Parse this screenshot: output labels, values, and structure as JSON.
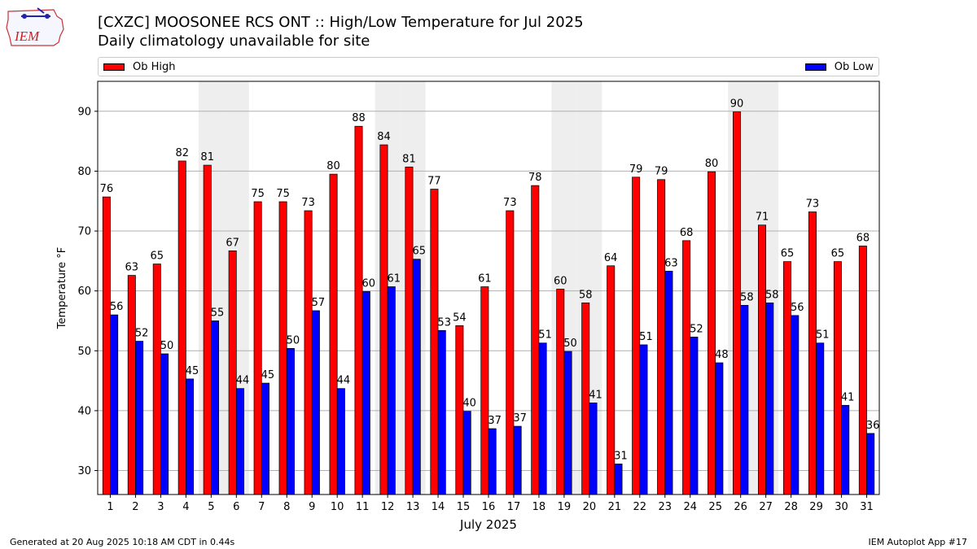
{
  "header": {
    "title": "[CXZC] MOOSONEE RCS  ONT :: High/Low Temperature for Jul 2025",
    "subtitle": "Daily climatology unavailable for site",
    "logo_text": "IEM"
  },
  "legend": {
    "high_label": "Ob High",
    "low_label": "Ob Low",
    "position": "top"
  },
  "footer": {
    "generated": "Generated at 20 Aug 2025 10:18 AM CDT in 0.44s",
    "app": "IEM Autoplot App #17"
  },
  "colors": {
    "high": "#ff0000",
    "low": "#0000ff",
    "weekend_shade": "#eeeeee",
    "grid": "#b0b0b0"
  },
  "chart_data": {
    "type": "bar",
    "title": "[CXZC] MOOSONEE RCS  ONT :: High/Low Temperature for Jul 2025",
    "subtitle": "Daily climatology unavailable for site",
    "xlabel": "July 2025",
    "ylabel": "Temperature °F",
    "ylim": [
      26,
      95
    ],
    "yticks": [
      30,
      40,
      50,
      60,
      70,
      80,
      90
    ],
    "grid": true,
    "categories": [
      "1",
      "2",
      "3",
      "4",
      "5",
      "6",
      "7",
      "8",
      "9",
      "10",
      "11",
      "12",
      "13",
      "14",
      "15",
      "16",
      "17",
      "18",
      "19",
      "20",
      "21",
      "22",
      "23",
      "24",
      "25",
      "26",
      "27",
      "28",
      "29",
      "30",
      "31"
    ],
    "shaded_days": [
      5,
      6,
      12,
      13,
      19,
      20,
      26,
      27
    ],
    "series": [
      {
        "name": "Ob High",
        "values": [
          75.7,
          62.6,
          64.5,
          81.7,
          81.0,
          66.7,
          74.9,
          74.9,
          73.4,
          79.5,
          87.5,
          84.4,
          80.7,
          77.0,
          54.2,
          60.7,
          73.4,
          77.6,
          60.3,
          58.0,
          64.2,
          79.0,
          78.6,
          68.4,
          79.9,
          89.9,
          71.0,
          64.9,
          73.2,
          64.9,
          67.5
        ],
        "labels": [
          "76",
          "63",
          "65",
          "82",
          "81",
          "67",
          "75",
          "75",
          "73",
          "80",
          "88",
          "84",
          "81",
          "77",
          "54",
          "61",
          "73",
          "78",
          "60",
          "58",
          "64",
          "79",
          "79",
          "68",
          "80",
          "90",
          "71",
          "65",
          "73",
          "65",
          "68"
        ]
      },
      {
        "name": "Ob Low",
        "values": [
          56.0,
          51.6,
          49.5,
          45.3,
          55.0,
          43.7,
          44.6,
          50.4,
          56.7,
          43.7,
          59.9,
          60.7,
          65.3,
          53.4,
          39.9,
          37.0,
          37.4,
          51.3,
          49.9,
          41.3,
          31.1,
          51.0,
          63.3,
          52.3,
          48.0,
          57.6,
          58.0,
          55.9,
          51.3,
          40.9,
          36.2
        ],
        "labels": [
          "56",
          "52",
          "50",
          "45",
          "55",
          "44",
          "45",
          "50",
          "57",
          "44",
          "60",
          "61",
          "65",
          "53",
          "40",
          "37",
          "37",
          "51",
          "50",
          "41",
          "31",
          "51",
          "63",
          "52",
          "48",
          "58",
          "58",
          "56",
          "51",
          "41",
          "36"
        ]
      }
    ]
  }
}
